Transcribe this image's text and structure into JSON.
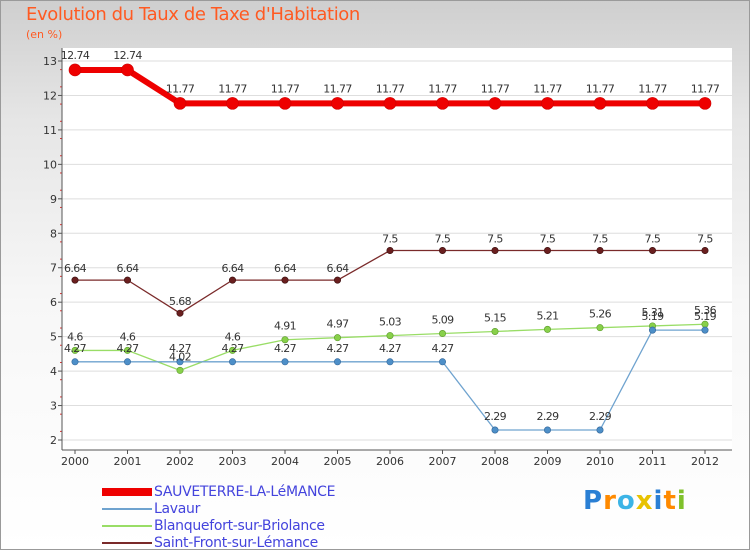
{
  "title": "Evolution du Taux de Taxe d'Habitation",
  "subtitle": "(en %)",
  "logo": {
    "letters": [
      "P",
      "r",
      "o",
      "x",
      "i",
      "t",
      "i"
    ],
    "colors": [
      "#2a7fd4",
      "#ff8a00",
      "#3cb4e6",
      "#e8c200",
      "#2a7fd4",
      "#ff8a00",
      "#7fc12b"
    ]
  },
  "chart_data": {
    "type": "line",
    "title": "Evolution du Taux de Taxe d'Habitation",
    "ylabel": "(en %)",
    "xlabel": "",
    "categories": [
      "2000",
      "2001",
      "2002",
      "2003",
      "2004",
      "2005",
      "2006",
      "2007",
      "2008",
      "2009",
      "2010",
      "2011",
      "2012"
    ],
    "ylim": [
      2,
      13
    ],
    "yticks": [
      "2",
      "3",
      "4",
      "5",
      "6",
      "7",
      "8",
      "9",
      "10",
      "11",
      "12",
      "13"
    ],
    "legend_position": "bottom-left",
    "series": [
      {
        "name": "SAUVETERRE-LA-LéMANCE",
        "color": "#ee0000",
        "values": [
          12.74,
          12.74,
          11.77,
          11.77,
          11.77,
          11.77,
          11.77,
          11.77,
          11.77,
          11.77,
          11.77,
          11.77,
          11.77
        ],
        "labels": [
          "12.74",
          "12.74",
          "11.77",
          "11.77",
          "11.77",
          "11.77",
          "11.77",
          "11.77",
          "11.77",
          "11.77",
          "11.77",
          "11.77",
          "11.77"
        ]
      },
      {
        "name": "Lavaur",
        "color": "#6fa3cf",
        "values": [
          4.27,
          4.27,
          4.27,
          4.27,
          4.27,
          4.27,
          4.27,
          4.27,
          2.29,
          2.29,
          2.29,
          5.19,
          5.19
        ],
        "labels": [
          "4.27",
          "4.27",
          "4.27",
          "4.27",
          "4.27",
          "4.27",
          "4.27",
          "4.27",
          "2.29",
          "2.29",
          "2.29",
          "5.19",
          "5.19"
        ]
      },
      {
        "name": "Blanquefort-sur-Briolance",
        "color": "#99dd66",
        "values": [
          4.6,
          4.6,
          4.02,
          4.6,
          4.91,
          4.97,
          5.03,
          5.09,
          5.15,
          5.21,
          5.26,
          5.31,
          5.36
        ],
        "labels": [
          "4.6",
          "4.6",
          "4.02",
          "4.6",
          "4.91",
          "4.97",
          "5.03",
          "5.09",
          "5.15",
          "5.21",
          "5.26",
          "5.31",
          "5.36"
        ]
      },
      {
        "name": "Saint-Front-sur-Lémance",
        "color": "#7a2a2a",
        "values": [
          6.64,
          6.64,
          5.68,
          6.64,
          6.64,
          6.64,
          7.5,
          7.5,
          7.5,
          7.5,
          7.5,
          7.5,
          7.5
        ],
        "labels": [
          "6.64",
          "6.64",
          "5.68",
          "6.64",
          "6.64",
          "6.64",
          "7.5",
          "7.5",
          "7.5",
          "7.5",
          "7.5",
          "7.5",
          "7.5"
        ]
      }
    ]
  }
}
